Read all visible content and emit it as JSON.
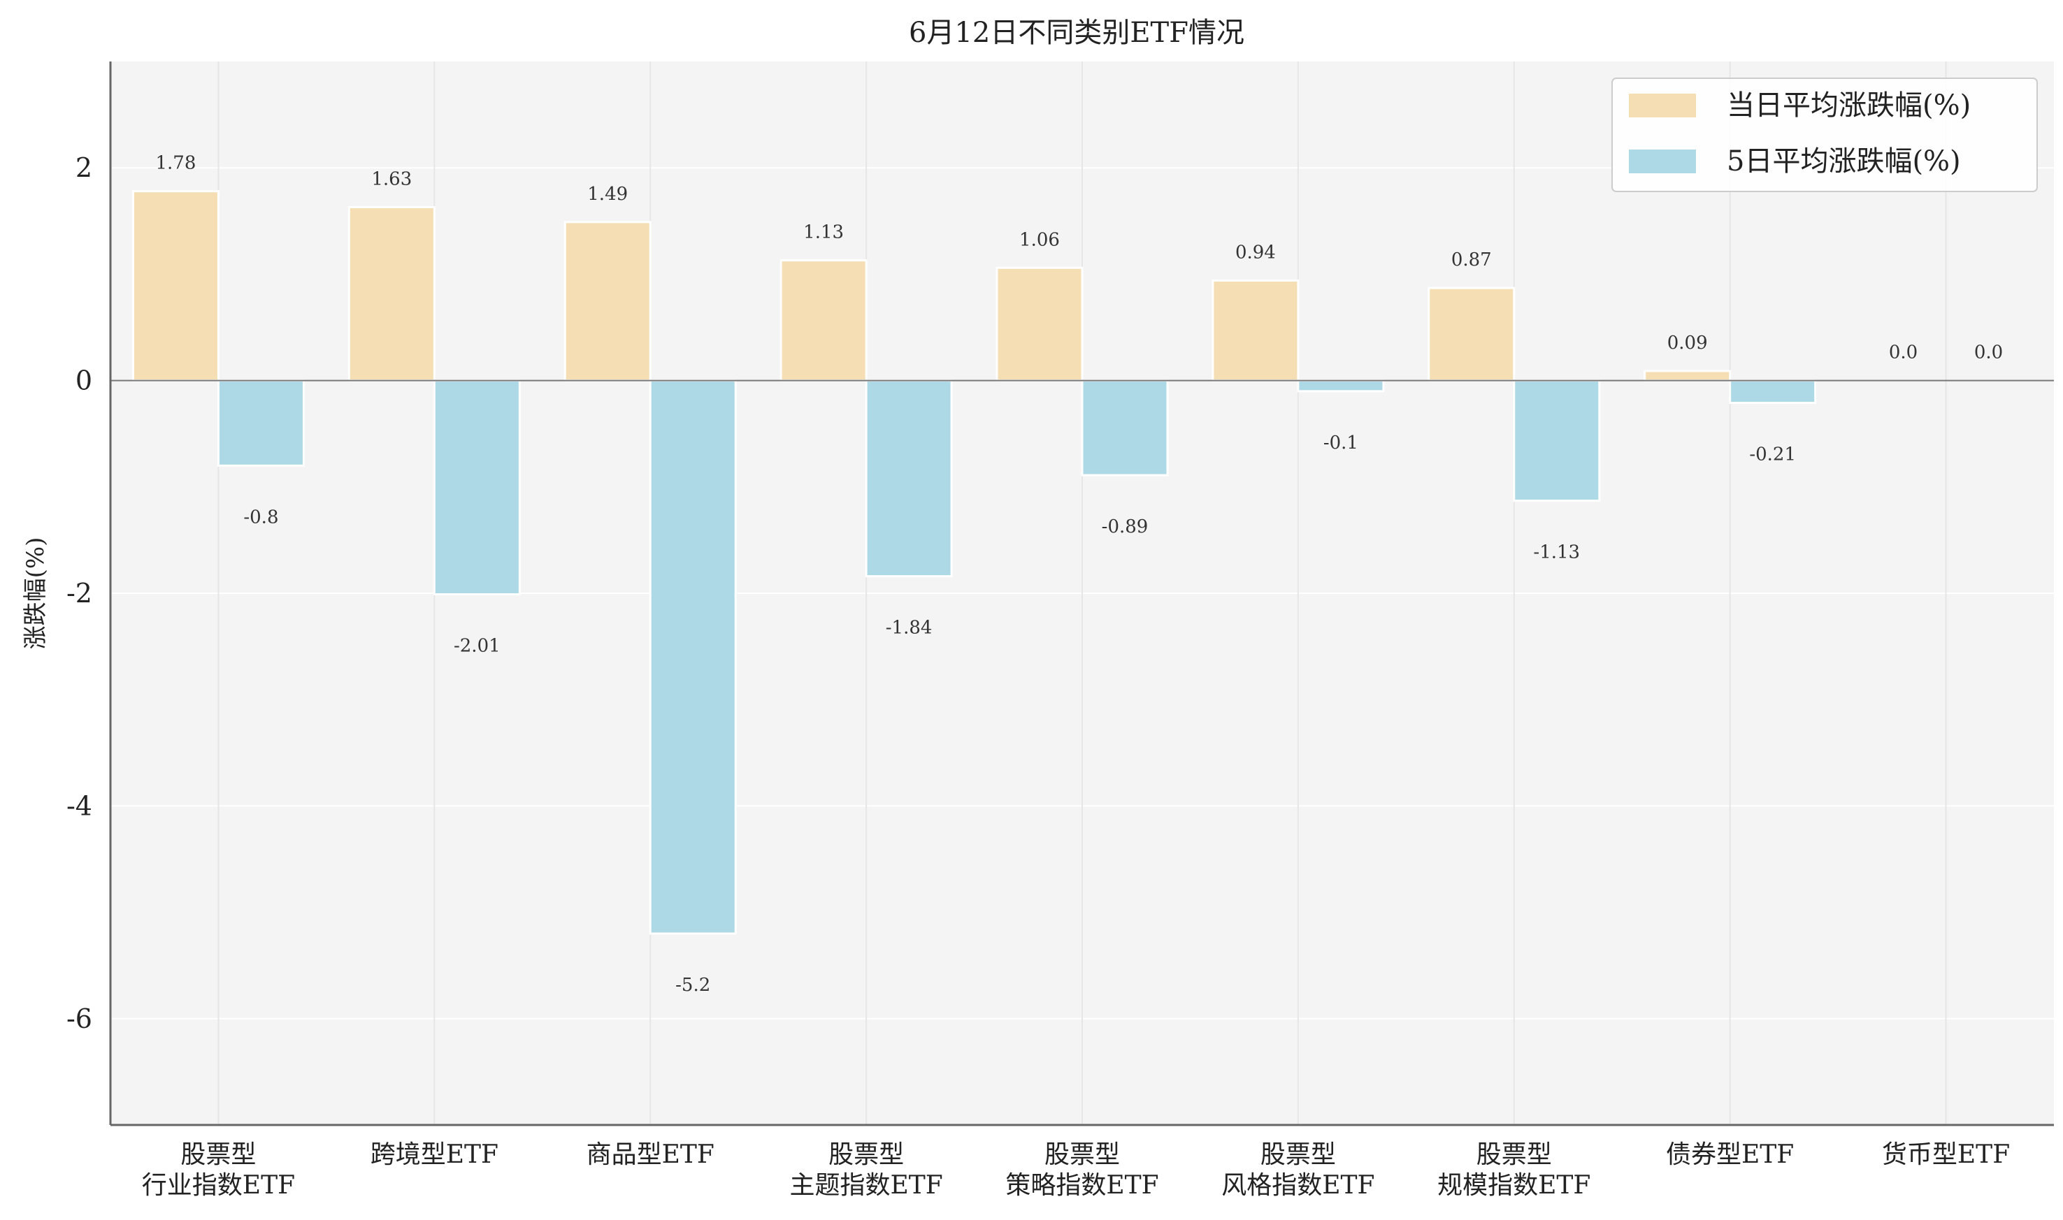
{
  "chart_data": {
    "type": "bar",
    "title": "6月12日不同类别ETF情况",
    "xlabel": "",
    "ylabel": "涨跌幅(%)",
    "ylim": [
      -7,
      3
    ],
    "yticks": [
      2,
      0,
      -2,
      -4,
      -6
    ],
    "grid": true,
    "legend_position": "top-right",
    "categories": [
      [
        "股票型",
        "行业指数ETF"
      ],
      [
        "跨境型ETF"
      ],
      [
        "商品型ETF"
      ],
      [
        "股票型",
        "主题指数ETF"
      ],
      [
        "股票型",
        "策略指数ETF"
      ],
      [
        "股票型",
        "风格指数ETF"
      ],
      [
        "股票型",
        "规模指数ETF"
      ],
      [
        "债券型ETF"
      ],
      [
        "货币型ETF"
      ]
    ],
    "series": [
      {
        "name": "当日平均涨跌幅(%)",
        "color": "#F5DEB3",
        "values": [
          1.78,
          1.63,
          1.49,
          1.13,
          1.06,
          0.94,
          0.87,
          0.09,
          0.0
        ],
        "labels": [
          "1.78",
          "1.63",
          "1.49",
          "1.13",
          "1.06",
          "0.94",
          "0.87",
          "0.09",
          "0.0"
        ]
      },
      {
        "name": "5日平均涨跌幅(%)",
        "color": "#ADD8E6",
        "values": [
          -0.8,
          -2.01,
          -5.2,
          -1.84,
          -0.89,
          -0.1,
          -1.13,
          -0.21,
          0.0
        ],
        "labels": [
          "-0.8",
          "-2.01",
          "-5.2",
          "-1.84",
          "-0.89",
          "-0.1",
          "-1.13",
          "-0.21",
          "0.0"
        ]
      }
    ]
  }
}
